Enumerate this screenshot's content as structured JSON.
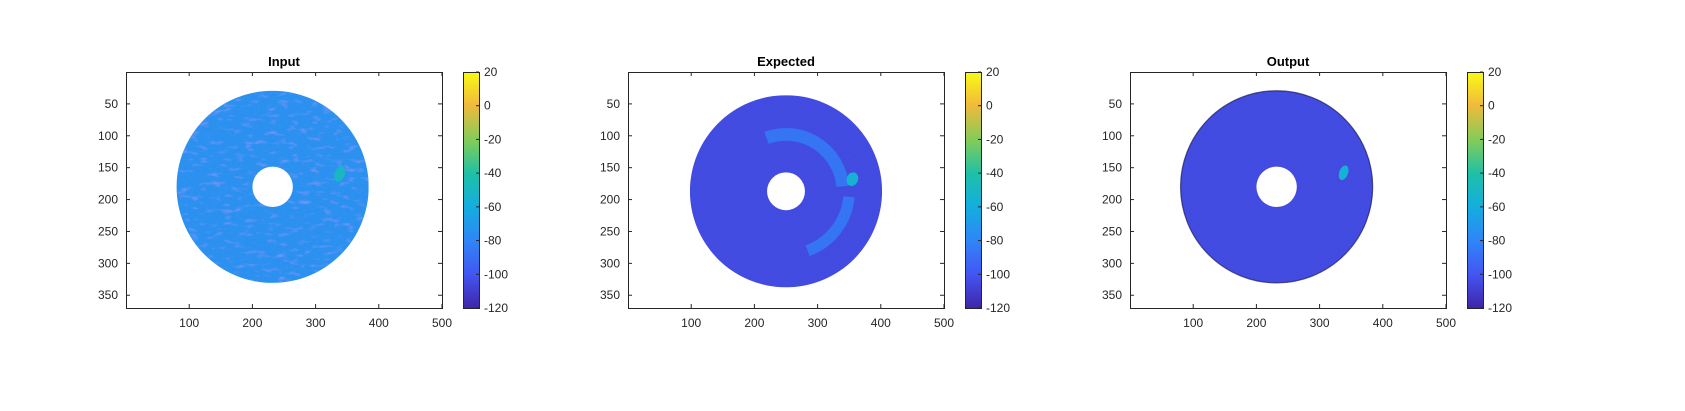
{
  "figure": {
    "panels": [
      {
        "title": "Input"
      },
      {
        "title": "Expected"
      },
      {
        "title": "Output"
      }
    ]
  },
  "chart_data": [
    {
      "type": "heatmap",
      "title": "Input",
      "xlabel": "",
      "ylabel": "",
      "xlim": [
        0,
        500
      ],
      "ylim": [
        370,
        0
      ],
      "y_reversed": true,
      "xticks": [
        100,
        200,
        300,
        400,
        500
      ],
      "yticks": [
        50,
        100,
        150,
        200,
        250,
        300,
        350
      ],
      "colorbar": {
        "limits": [
          -120,
          20
        ],
        "ticks": [
          20,
          0,
          -20,
          -40,
          -60,
          -80,
          -100,
          -120
        ],
        "colormap": "parula"
      },
      "content": {
        "annulus_center": [
          232,
          180
        ],
        "outer_radius": 152,
        "inner_radius": 32,
        "background_level": -75,
        "texture": "speckled, radial streaks with patches near -90 to -100",
        "features": [
          {
            "type": "blob",
            "center": [
              338,
              160
            ],
            "size": [
              16,
              26
            ],
            "level": -50
          }
        ]
      }
    },
    {
      "type": "heatmap",
      "title": "Expected",
      "xlabel": "",
      "ylabel": "",
      "xlim": [
        0,
        500
      ],
      "ylim": [
        370,
        0
      ],
      "y_reversed": true,
      "xticks": [
        100,
        200,
        300,
        400,
        500
      ],
      "yticks": [
        50,
        100,
        150,
        200,
        250,
        300,
        350
      ],
      "colorbar": {
        "limits": [
          -120,
          20
        ],
        "ticks": [
          20,
          0,
          -20,
          -40,
          -60,
          -80,
          -100,
          -120
        ],
        "colormap": "parula"
      },
      "content": {
        "annulus_center": [
          250,
          187
        ],
        "outer_radius": 152,
        "inner_radius": 30,
        "background_level": -105,
        "features": [
          {
            "type": "arc",
            "radius": 90,
            "width": 20,
            "angle_range": [
              -110,
              -5
            ],
            "level": -85
          },
          {
            "type": "arc",
            "radius": 100,
            "width": 18,
            "angle_range": [
              5,
              70
            ],
            "level": -85
          },
          {
            "type": "blob",
            "center": [
              355,
              168
            ],
            "size": [
              18,
              22
            ],
            "level": -55
          }
        ]
      }
    },
    {
      "type": "heatmap",
      "title": "Output",
      "xlabel": "",
      "ylabel": "",
      "xlim": [
        0,
        500
      ],
      "ylim": [
        370,
        0
      ],
      "y_reversed": true,
      "xticks": [
        100,
        200,
        300,
        400,
        500
      ],
      "yticks": [
        50,
        100,
        150,
        200,
        250,
        300,
        350
      ],
      "colorbar": {
        "limits": [
          -120,
          20
        ],
        "ticks": [
          20,
          0,
          -20,
          -40,
          -60,
          -80,
          -100,
          -120
        ],
        "colormap": "parula"
      },
      "content": {
        "annulus_center": [
          232,
          180
        ],
        "outer_radius": 152,
        "inner_radius": 32,
        "background_level": -105,
        "features": [
          {
            "type": "blob",
            "center": [
              338,
              158
            ],
            "size": [
              14,
              24
            ],
            "level": -55
          }
        ]
      }
    }
  ]
}
